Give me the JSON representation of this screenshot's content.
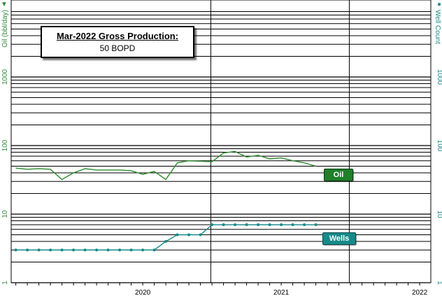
{
  "chart_data": {
    "type": "line",
    "y_left_label": "Oil (bbl/day)",
    "y_right_label": "Well Count",
    "y_scale": "log",
    "ylim": [
      1,
      10000
    ],
    "y_tick_labels": [
      "1",
      "10",
      "100",
      "1000"
    ],
    "x_tick_labels": [
      "2020",
      "2021",
      "2022"
    ],
    "info_box": {
      "title": "Mar-2022 Gross Production:",
      "value": "50 BOPD"
    },
    "series": [
      {
        "name": "Oil",
        "color": "#2e8b2e",
        "x": [
          "2019-08",
          "2019-09",
          "2019-10",
          "2019-11",
          "2019-12",
          "2020-01",
          "2020-02",
          "2020-03",
          "2020-04",
          "2020-05",
          "2020-06",
          "2020-07",
          "2020-08",
          "2020-09",
          "2020-10",
          "2020-11",
          "2020-12",
          "2021-01",
          "2021-02",
          "2021-03",
          "2021-04",
          "2021-05",
          "2021-06",
          "2021-07",
          "2021-08",
          "2021-09",
          "2021-10",
          "2021-11",
          "2021-12",
          "2022-01",
          "2022-02",
          "2022-03"
        ],
        "values": [
          47,
          45,
          46,
          45,
          32,
          40,
          46,
          44,
          44,
          44,
          43,
          38,
          42,
          32,
          56,
          60,
          59,
          58,
          78,
          82,
          68,
          72,
          64,
          66,
          60,
          56,
          50,
          45,
          35,
          38,
          46,
          50
        ]
      },
      {
        "name": "Wells",
        "color": "#178a8a",
        "x": [
          "2019-08",
          "2019-09",
          "2019-10",
          "2019-11",
          "2019-12",
          "2020-01",
          "2020-02",
          "2020-03",
          "2020-04",
          "2020-05",
          "2020-06",
          "2020-07",
          "2020-08",
          "2020-09",
          "2020-10",
          "2020-11",
          "2020-12",
          "2021-01",
          "2021-02",
          "2021-03",
          "2021-04",
          "2021-05",
          "2021-06",
          "2021-07",
          "2021-08",
          "2021-09",
          "2021-10",
          "2021-11",
          "2021-12",
          "2022-01",
          "2022-02",
          "2022-03"
        ],
        "values": [
          3,
          3,
          3,
          3,
          3,
          3,
          3,
          3,
          3,
          3,
          3,
          3,
          3,
          4,
          5,
          5,
          5,
          7,
          7,
          7,
          7,
          7,
          7,
          7,
          7,
          7,
          7,
          7,
          7,
          7,
          7,
          7
        ]
      }
    ]
  }
}
